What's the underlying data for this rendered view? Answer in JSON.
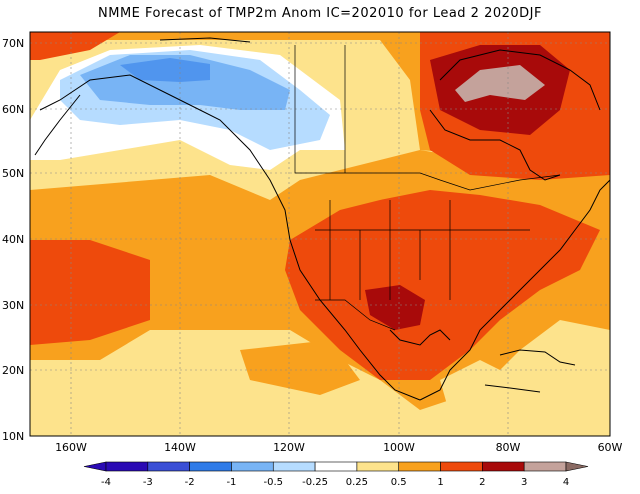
{
  "title": "NMME Forecast of TMP2m Anom IC=202010 for Lead 2 2020DJF",
  "map": {
    "lat_labels": [
      "70N",
      "60N",
      "50N",
      "40N",
      "30N",
      "20N",
      "10N"
    ],
    "lon_labels": [
      "160W",
      "140W",
      "120W",
      "100W",
      "80W",
      "60W"
    ]
  },
  "legend": {
    "labels": [
      "-4",
      "-3",
      "-2",
      "-1",
      "-0.5",
      "-0.25",
      "0.25",
      "0.5",
      "1",
      "2",
      "3",
      "4"
    ],
    "colors": [
      "#2a0ab4",
      "#3a4fd6",
      "#2f7be8",
      "#78b4f5",
      "#b6dcff",
      "#ffffff",
      "#fde38c",
      "#f8a11e",
      "#ee4a0c",
      "#a80a0a",
      "#c4a29b"
    ]
  },
  "colors": {
    "land_outline": "#000000",
    "warm1": "#fde38c",
    "warm2": "#f8a11e",
    "warm3": "#ee4a0c",
    "warm4": "#a80a0a",
    "warm5": "#c4a29b",
    "cold1": "#b6dcff",
    "cold2": "#78b4f5",
    "cold3": "#2f7be8"
  }
}
